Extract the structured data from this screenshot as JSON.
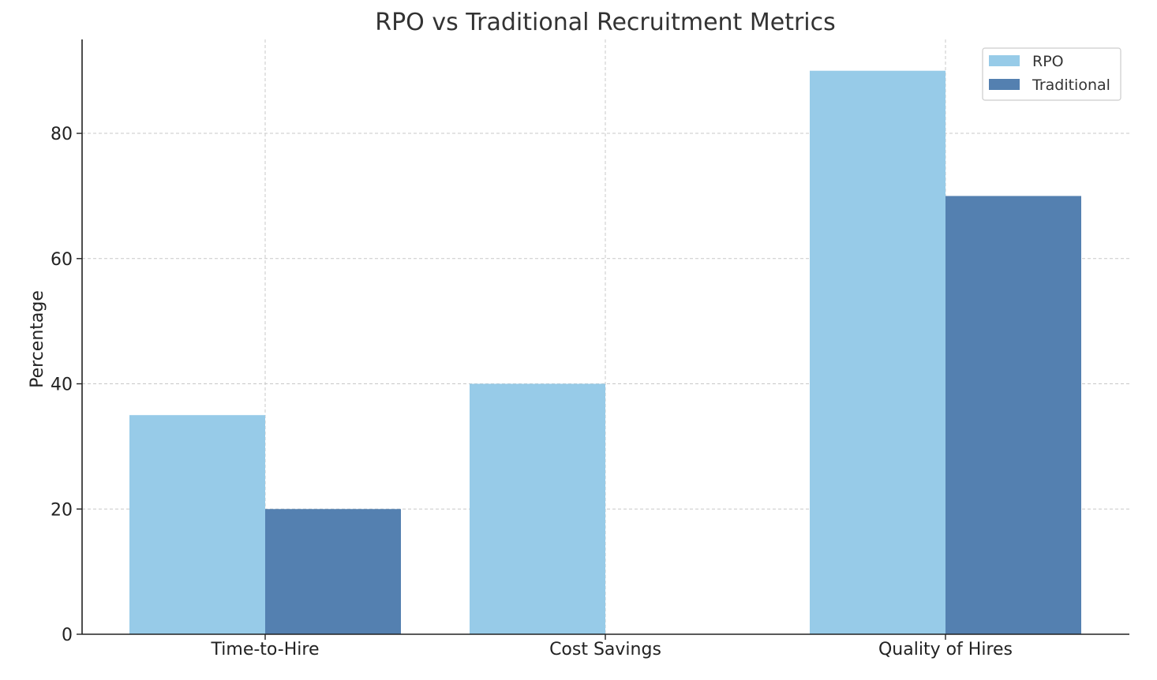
{
  "chart_data": {
    "type": "bar",
    "title": "RPO vs Traditional Recruitment Metrics",
    "xlabel": "",
    "ylabel": "Percentage",
    "categories": [
      "Time-to-Hire",
      "Cost Savings",
      "Quality of Hires"
    ],
    "series": [
      {
        "name": "RPO",
        "values": [
          35,
          40,
          90
        ],
        "color": "#97cbe8"
      },
      {
        "name": "Traditional",
        "values": [
          20,
          0,
          70
        ],
        "color": "#5480b0"
      }
    ],
    "ylim": [
      0,
      95
    ],
    "yticks": [
      0,
      20,
      40,
      60,
      80
    ],
    "grid": true,
    "legend_position": "top-right"
  }
}
